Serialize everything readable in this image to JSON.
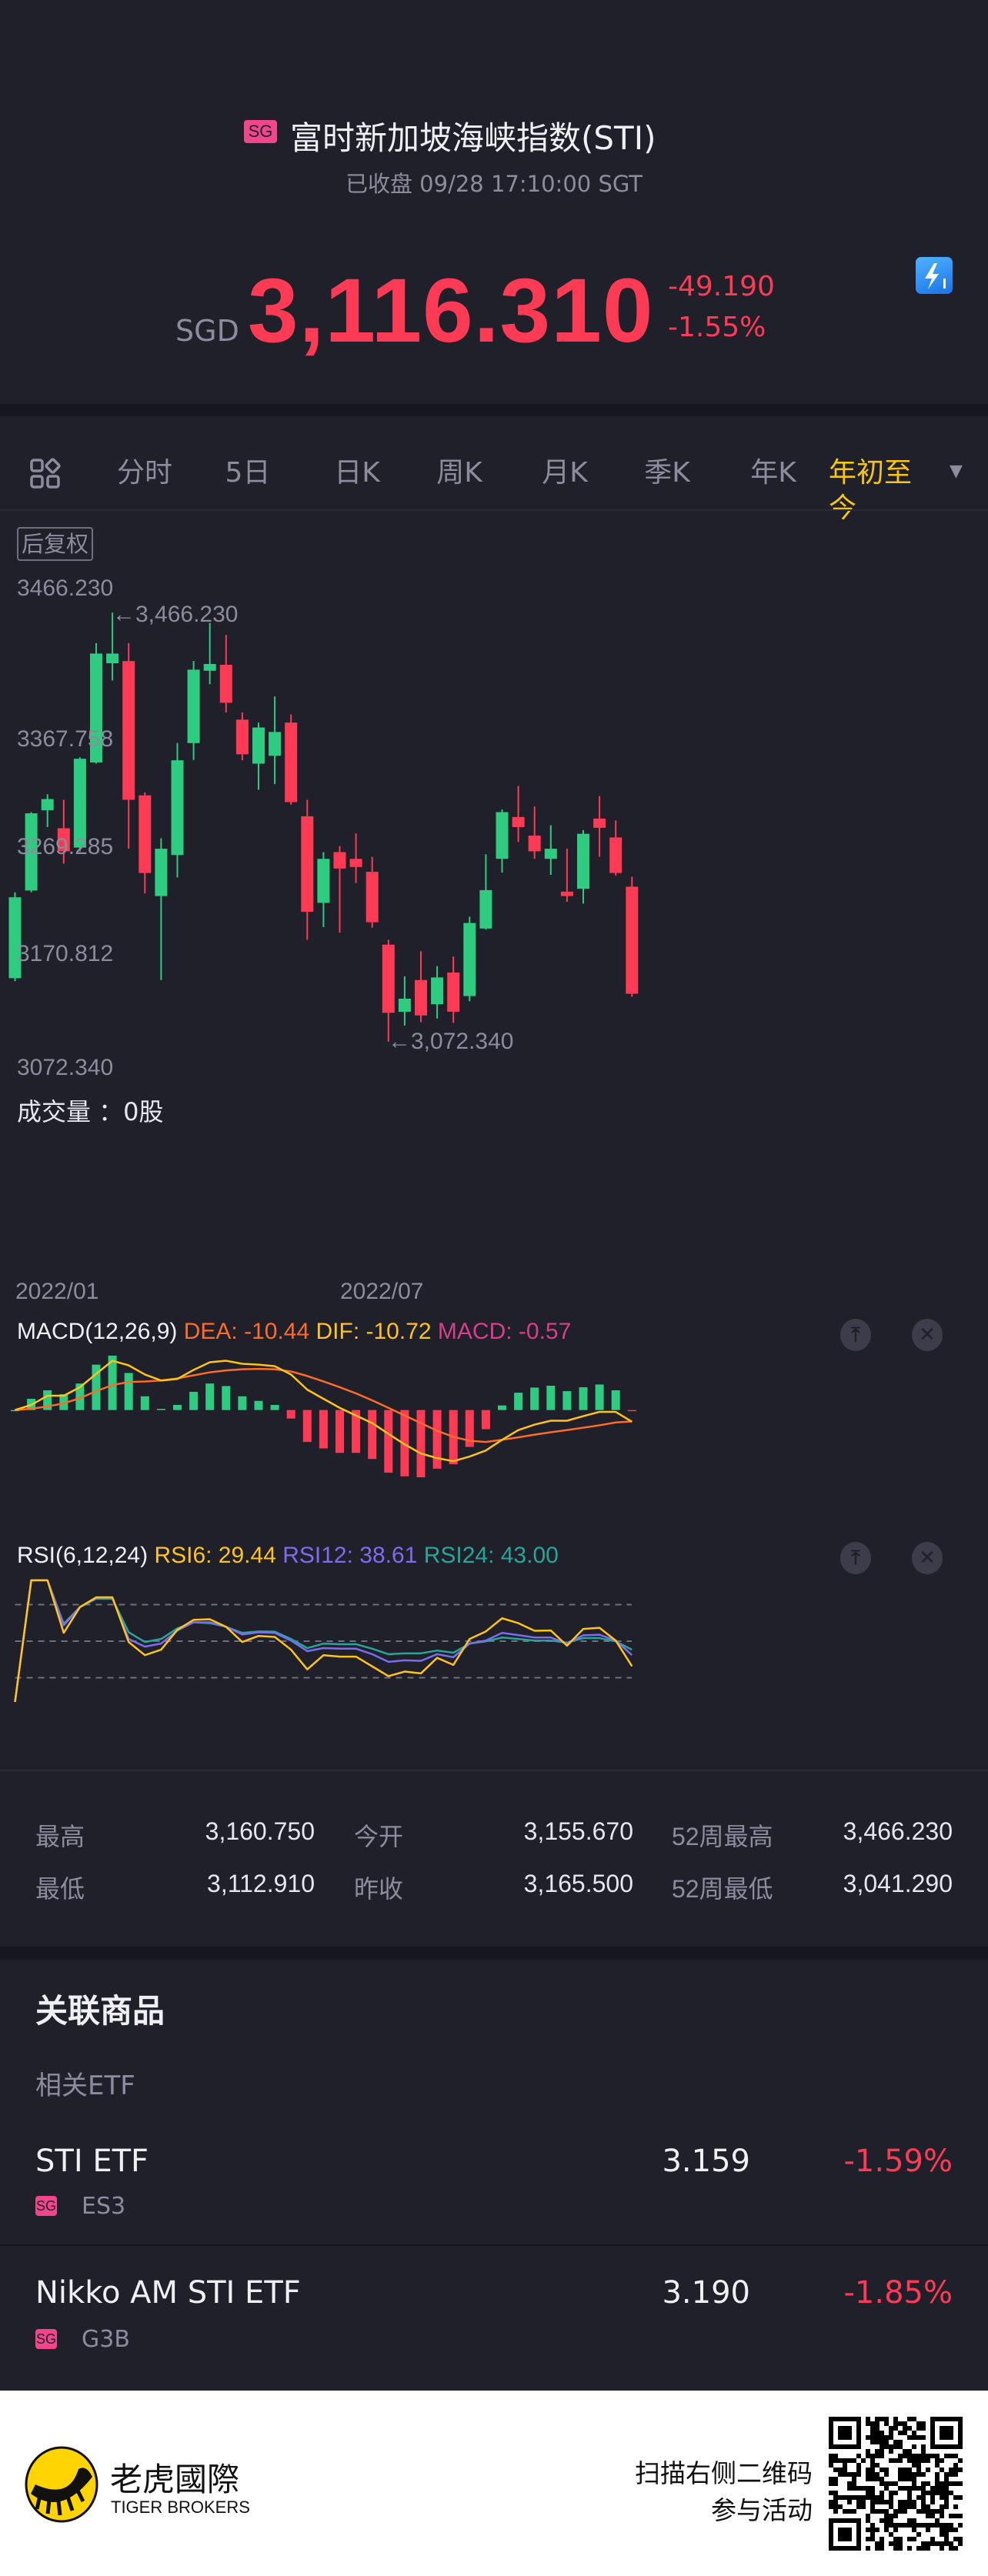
{
  "header": {
    "market_badge": "SG",
    "title": "富时新加坡海峡指数(STI)",
    "status": "已收盘 09/28 17:10:00 SGT",
    "currency": "SGD",
    "price": "3,116.310",
    "change": "-49.190",
    "change_pct": "-1.55%",
    "lightning_icon": "lightning-level-1-icon"
  },
  "tabs": {
    "grid_icon": "grid-icon",
    "items": [
      "分时",
      "5日",
      "日K",
      "周K",
      "月K",
      "季K",
      "年K"
    ],
    "active": "年初至今",
    "active_dropdown": "▼"
  },
  "chart": {
    "adjust_label": "后复权",
    "volume_label": "成交量 ：0股",
    "high_marker": "←3,466.230",
    "low_marker": "←3,072.340",
    "macd_header": {
      "name": "MACD(12,26,9)",
      "dea": "DEA: -10.44",
      "dif": "DIF: -10.72",
      "macd": "MACD: -0.57"
    },
    "rsi_header": {
      "name": "RSI(6,12,24)",
      "rsi6": "RSI6: 29.44",
      "rsi12": "RSI12: 38.61",
      "rsi24": "RSI24: 43.00"
    },
    "colors": {
      "up": "#2ecc80",
      "down": "#ff3a55",
      "dea": "#ff6b2b",
      "dif": "#ffc31a",
      "macd": "#d6408a",
      "rsi6": "#ffc31a",
      "rsi12": "#7b6cf0",
      "rsi24": "#26a69a"
    }
  },
  "chart_data": [
    {
      "type": "candlestick",
      "y_ticks": [
        "3466.230",
        "3367.758",
        "3269.285",
        "3170.812",
        "3072.340"
      ],
      "x_ticks": [
        "2022/01",
        "2022/07"
      ],
      "ylim": [
        3072.34,
        3466.23
      ],
      "ohlc": [
        [
          3130.6,
          3209.4,
          3127.9,
          3204.9
        ],
        [
          3211.1,
          3283.1,
          3209.4,
          3282.0
        ],
        [
          3284.8,
          3299.5,
          3269.4,
          3295.1
        ],
        [
          3268.3,
          3294.4,
          3235.8,
          3247.1
        ],
        [
          3250.5,
          3333.4,
          3247.1,
          3332.1
        ],
        [
          3328.7,
          3438.3,
          3327.6,
          3428.7
        ],
        [
          3419.8,
          3466.23,
          3404.0,
          3428.7
        ],
        [
          3421.8,
          3438.3,
          3249.5,
          3294.4
        ],
        [
          3298.5,
          3301.2,
          3208.4,
          3227.2
        ],
        [
          3206.0,
          3259.1,
          3128.9,
          3249.5
        ],
        [
          3243.7,
          3346.5,
          3223.1,
          3330.7
        ],
        [
          3346.5,
          3421.8,
          3331.0,
          3413.9
        ],
        [
          3412.9,
          3456.8,
          3400.6,
          3419.1
        ],
        [
          3418.4,
          3445.8,
          3374.6,
          3383.5
        ],
        [
          3368.0,
          3374.6,
          3330.7,
          3336.2
        ],
        [
          3327.6,
          3365.3,
          3303.6,
          3360.8
        ],
        [
          3334.8,
          3389.3,
          3308.8,
          3356.7
        ],
        [
          3365.3,
          3372.8,
          3289.9,
          3292.3
        ],
        [
          3279.3,
          3294.4,
          3165.9,
          3191.6
        ],
        [
          3199.8,
          3246.4,
          3177.6,
          3240.2
        ],
        [
          3246.4,
          3251.9,
          3172.4,
          3231.3
        ],
        [
          3240.2,
          3263.5,
          3218.0,
          3232.7
        ],
        [
          3228.3,
          3242.0,
          3176.9,
          3182.0
        ],
        [
          3161.4,
          3165.9,
          3072.34,
          3098.8
        ],
        [
          3099.8,
          3132.3,
          3087.1,
          3111.8
        ],
        [
          3128.9,
          3155.3,
          3090.2,
          3096.4
        ],
        [
          3106.7,
          3141.6,
          3093.6,
          3131.3
        ],
        [
          3135.8,
          3150.5,
          3089.5,
          3099.8
        ],
        [
          3114.2,
          3187.1,
          3109.4,
          3181.3
        ],
        [
          3176.2,
          3244.4,
          3175.2,
          3211.5
        ],
        [
          3240.2,
          3285.5,
          3227.6,
          3283.1
        ],
        [
          3278.6,
          3307.1,
          3255.7,
          3269.4
        ],
        [
          3261.5,
          3288.2,
          3240.2,
          3247.1
        ],
        [
          3240.2,
          3271.1,
          3225.5,
          3249.5
        ],
        [
          3210.1,
          3249.5,
          3200.8,
          3206.0
        ],
        [
          3212.8,
          3266.6,
          3199.1,
          3263.2
        ],
        [
          3277.2,
          3297.8,
          3242.0,
          3268.7
        ],
        [
          3259.8,
          3275.5,
          3224.8,
          3227.2
        ],
        [
          3214.6,
          3223.8,
          3113.5,
          3116.31
        ]
      ]
    },
    {
      "type": "bar",
      "series": [
        {
          "name": "MACD",
          "values": [
            0,
            10.3,
            18.1,
            14.5,
            24.3,
            41.6,
            49.9,
            34.0,
            12.6,
            1.1,
            4.7,
            16.7,
            24.3,
            22.0,
            12.6,
            8.4,
            4.7,
            -7.8,
            -29.3,
            -35.2,
            -39.3,
            -39.3,
            -44.9,
            -57.5,
            -60.8,
            -61.7,
            -53.8,
            -49.7,
            -33.8,
            -17.6,
            4.2,
            15.9,
            20.6,
            22.3,
            17.3,
            20.9,
            23.4,
            18.1,
            -0.57
          ]
        },
        {
          "name": "DIF",
          "values": [
            0,
            4.7,
            13.1,
            13.1,
            20.9,
            33.2,
            45.2,
            41.0,
            32.6,
            27.1,
            28.5,
            36.8,
            43.8,
            45.2,
            42.4,
            41.6,
            40.2,
            32.6,
            18.7,
            10.3,
            2.0,
            -5.0,
            -12.0,
            -21.8,
            -31.5,
            -39.9,
            -44.1,
            -46.9,
            -42.7,
            -37.1,
            -27.3,
            -18.4,
            -13.4,
            -9.8,
            -9.8,
            -5.6,
            -1.7,
            -1.7,
            -10.72
          ]
        },
        {
          "name": "DEA",
          "values": [
            0,
            1.1,
            3.3,
            6.1,
            10.9,
            17.3,
            22.9,
            25.7,
            26.2,
            27.1,
            29.0,
            31.8,
            34.6,
            36.3,
            37.4,
            37.7,
            37.4,
            35.4,
            31.2,
            26.2,
            20.9,
            15.3,
            8.9,
            2.0,
            -5.0,
            -12.0,
            -19.0,
            -24.6,
            -28.2,
            -29.3,
            -27.3,
            -25.1,
            -22.6,
            -20.4,
            -18.4,
            -16.2,
            -14.0,
            -11.4,
            -10.44
          ]
        }
      ]
    },
    {
      "type": "line",
      "reference_lines": [
        80,
        50,
        20
      ],
      "ylim": [
        0,
        100
      ],
      "series": [
        {
          "name": "RSI6",
          "values": [
            0,
            100,
            100,
            56.8,
            78,
            86,
            86,
            49.3,
            38.5,
            43,
            59.3,
            67.5,
            68,
            61.8,
            49.3,
            54.3,
            53.5,
            43,
            26.8,
            38.5,
            37.3,
            37.3,
            29.3,
            21.3,
            25,
            23.5,
            36.3,
            30.5,
            51.8,
            58,
            68.8,
            64.8,
            58.5,
            58.8,
            46.3,
            60,
            61,
            50.5,
            29.44
          ]
        },
        {
          "name": "RSI12",
          "values": [
            0,
            100,
            100,
            63,
            78,
            85.3,
            85.3,
            51.8,
            45.5,
            48,
            58.8,
            65.5,
            65.5,
            61.8,
            55.5,
            57.3,
            56.8,
            50.5,
            41.8,
            44.3,
            43.8,
            43.8,
            39.3,
            33,
            34.3,
            33.8,
            39.3,
            36.8,
            48,
            50.5,
            56.8,
            55,
            53,
            53,
            48,
            54.8,
            55.3,
            50.5,
            38.61
          ]
        },
        {
          "name": "RSI24",
          "values": [
            0,
            100,
            100,
            64.3,
            78,
            84.8,
            84.8,
            57.3,
            49.3,
            51.8,
            60.5,
            65.5,
            64.8,
            61.8,
            56.8,
            58,
            57.8,
            51.8,
            44.3,
            48,
            47.5,
            47.5,
            43.8,
            39.3,
            40,
            40,
            42.3,
            40.5,
            48,
            49.8,
            53,
            51.8,
            50.5,
            50.5,
            48.8,
            52.5,
            52.5,
            49.8,
            43.0
          ]
        }
      ]
    }
  ],
  "stats": [
    {
      "label": "最高",
      "value": "3,160.750"
    },
    {
      "label": "今开",
      "value": "3,155.670"
    },
    {
      "label": "52周最高",
      "value": "3,466.230"
    },
    {
      "label": "最低",
      "value": "3,112.910"
    },
    {
      "label": "昨收",
      "value": "3,165.500"
    },
    {
      "label": "52周最低",
      "value": "3,041.290"
    }
  ],
  "related": {
    "title": "关联商品",
    "subtitle": "相关ETF",
    "items": [
      {
        "name": "STI ETF",
        "badge": "SG",
        "code": "ES3",
        "price": "3.159",
        "change": "-1.59%"
      },
      {
        "name": "Nikko AM STI ETF",
        "badge": "SG",
        "code": "G3B",
        "price": "3.190",
        "change": "-1.85%"
      }
    ]
  },
  "footer": {
    "brand_cn": "老虎國際",
    "brand_en": "TIGER BROKERS",
    "promo_line1": "扫描右侧二维码",
    "promo_line2": "参与活动"
  }
}
